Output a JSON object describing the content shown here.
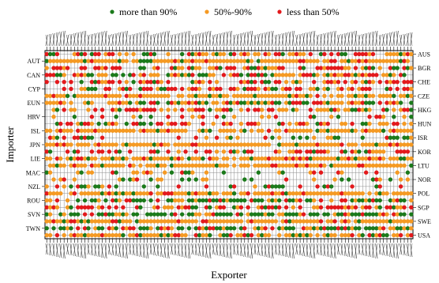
{
  "chart_data": {
    "type": "scatter",
    "legend": {
      "position": "top",
      "entries": [
        {
          "label": "more than 90%",
          "color": "#1b7a1b"
        },
        {
          "label": "50%-90%",
          "color": "#f59a23"
        },
        {
          "label": "less than 50%",
          "color": "#e3191c"
        }
      ]
    },
    "xlabel": "Exporter",
    "ylabel": "Importer",
    "importer_left_labels": [
      "AUT",
      "CAN",
      "CYP",
      "EUN",
      "HRV",
      "ISL",
      "JPN",
      "LIE",
      "MAC",
      "NZL",
      "ROU",
      "SVN",
      "TWN"
    ],
    "importer_right_labels": [
      "AUS",
      "BGR",
      "CHE",
      "CZE",
      "HKG",
      "HUN",
      "ISR",
      "KOR",
      "LTU",
      "NOR",
      "POL",
      "SGP",
      "SWE",
      "USA"
    ],
    "exporter_tick_labels_legible": false,
    "grid": true,
    "note": "Per-cell share categories are not individually legible in the source; dots are rendered as a dense grid of the three categories."
  }
}
